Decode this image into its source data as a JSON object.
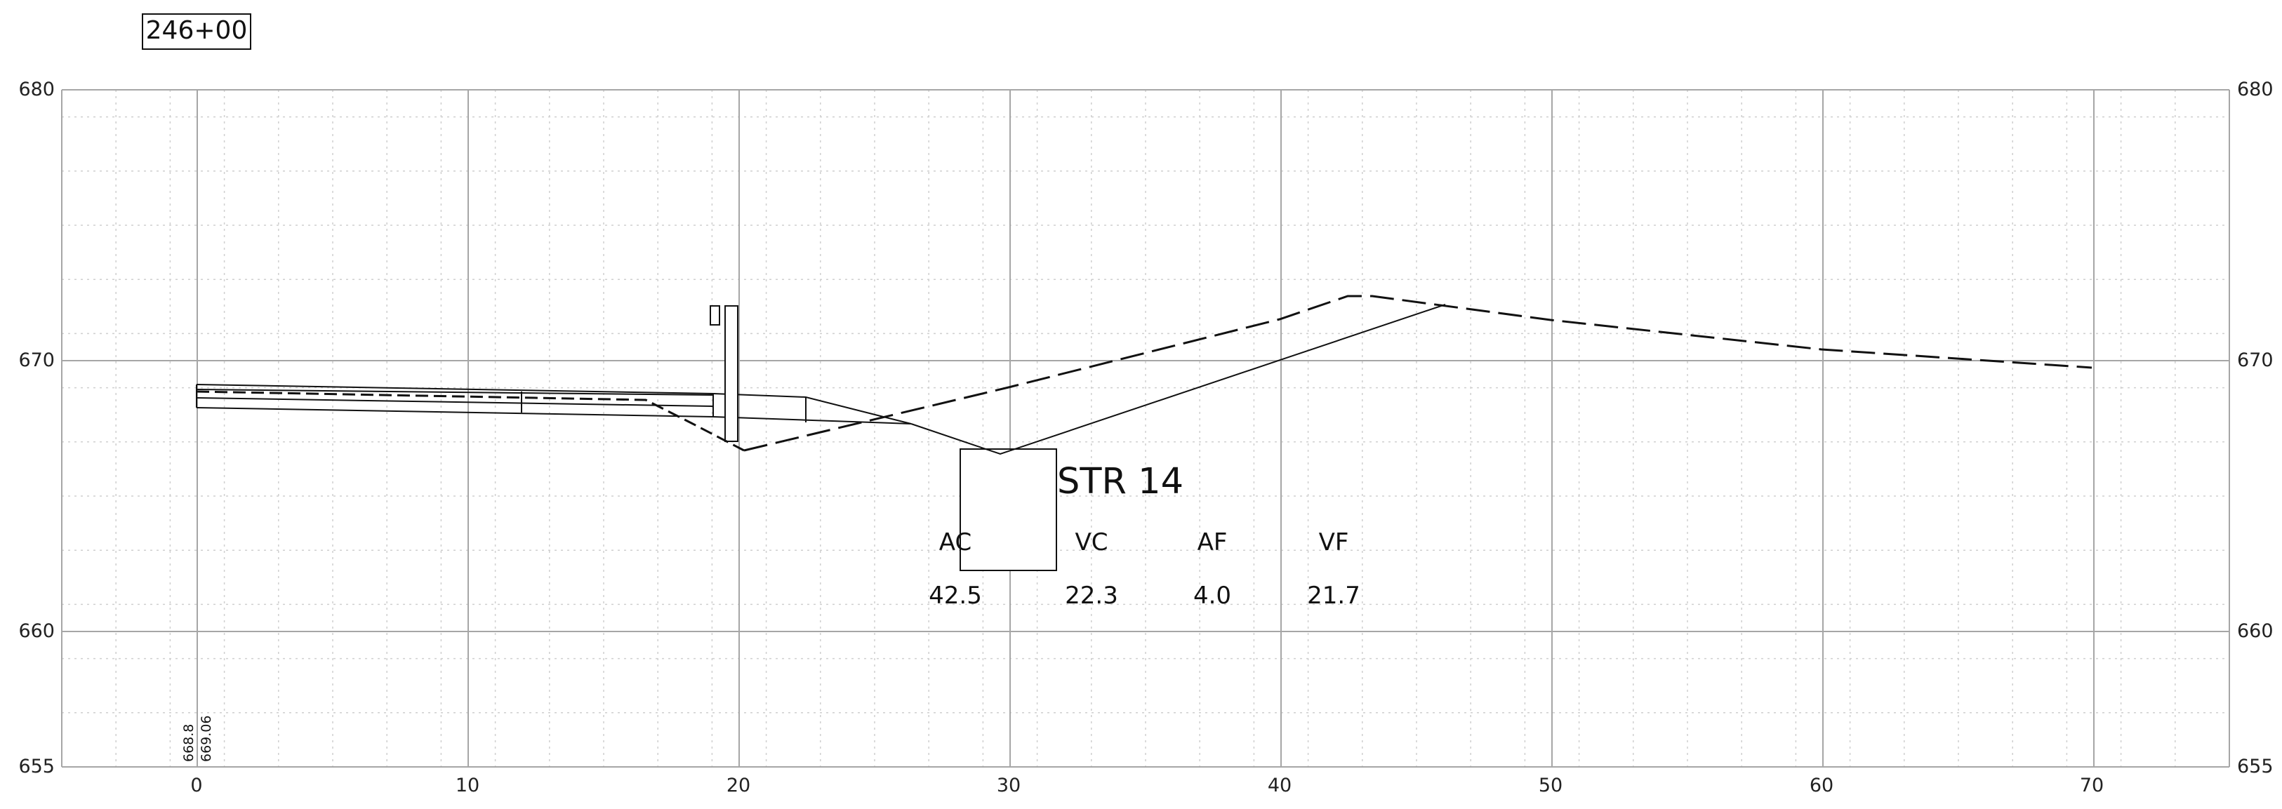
{
  "station": "246+00",
  "structure": "STR 14",
  "axes": {
    "x_ticks": [
      "0",
      "10",
      "20",
      "30",
      "40",
      "50",
      "60",
      "70"
    ],
    "y_ticks_left": [
      "680",
      "670",
      "660",
      "655"
    ],
    "y_ticks_right": [
      "680",
      "670",
      "660",
      "655"
    ]
  },
  "centerline_elevations": [
    "668.8",
    "669.06"
  ],
  "earthwork": {
    "headers": [
      "AC",
      "VC",
      "AF",
      "VF"
    ],
    "values": [
      "42.5",
      "22.3",
      "4.0",
      "21.7"
    ]
  },
  "chart_data": {
    "type": "line",
    "title": "246+00",
    "xlabel": "",
    "ylabel": "",
    "xlim": [
      -5,
      75
    ],
    "ylim": [
      655,
      680
    ],
    "x_ticks": [
      0,
      10,
      20,
      30,
      40,
      50,
      60,
      70
    ],
    "y_ticks": [
      655,
      660,
      670,
      680
    ],
    "grid": true,
    "series": [
      {
        "style": "dashed",
        "points": [
          [
            0,
            668.8
          ],
          [
            17,
            668.3
          ],
          [
            19.8,
            666.6
          ],
          [
            25,
            667.8
          ],
          [
            30,
            669.1
          ],
          [
            40,
            671.6
          ],
          [
            42.5,
            672.3
          ],
          [
            43.5,
            672.3
          ],
          [
            50,
            671.4
          ],
          [
            60,
            670.4
          ],
          [
            70,
            669.7
          ]
        ]
      },
      {
        "style": "solid",
        "points": [
          [
            0,
            669.06
          ],
          [
            19,
            668.7
          ],
          [
            22.5,
            668.6
          ],
          [
            26.5,
            667.5
          ],
          [
            29.7,
            666.5
          ],
          [
            46,
            672.0
          ]
        ]
      }
    ]
  }
}
